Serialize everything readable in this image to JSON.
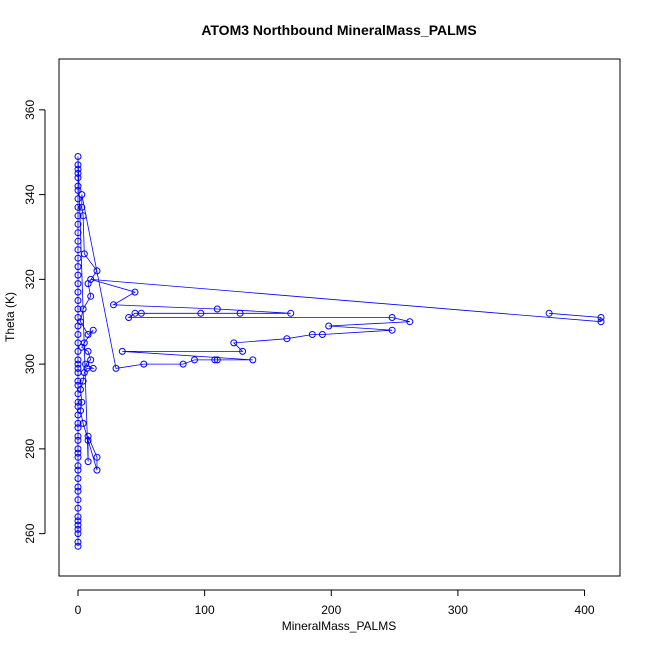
{
  "chart_data": {
    "type": "line",
    "title": "ATOM3 Northbound MineralMass_PALMS",
    "xlabel": "MineralMass_PALMS",
    "ylabel": "Theta (K)",
    "xlim": [
      -15,
      428
    ],
    "ylim": [
      250,
      372
    ],
    "xticks": [
      0,
      100,
      200,
      300,
      400
    ],
    "yticks": [
      260,
      280,
      300,
      320,
      340,
      360
    ],
    "grid": false,
    "legend": "none",
    "series": [
      {
        "color": "#0000ff",
        "marker": "open-circle",
        "points": [
          [
            0,
            257
          ],
          [
            0,
            258
          ],
          [
            0,
            260
          ],
          [
            0,
            261
          ],
          [
            0,
            262
          ],
          [
            0,
            263
          ],
          [
            0,
            264
          ],
          [
            0,
            266
          ],
          [
            0,
            268
          ],
          [
            0,
            270
          ],
          [
            0,
            271
          ],
          [
            0,
            273
          ],
          [
            0,
            275
          ],
          [
            0,
            276
          ],
          [
            0,
            278
          ],
          [
            0,
            279
          ],
          [
            0,
            280
          ],
          [
            0,
            282
          ],
          [
            0,
            283
          ],
          [
            0,
            285
          ],
          [
            0,
            286
          ],
          [
            0,
            288
          ],
          [
            0,
            290
          ],
          [
            0,
            291
          ],
          [
            0,
            293
          ],
          [
            0,
            295
          ],
          [
            0,
            296
          ],
          [
            0,
            298
          ],
          [
            0,
            299
          ],
          [
            0,
            300
          ],
          [
            0,
            301
          ],
          [
            0,
            303
          ],
          [
            0,
            305
          ],
          [
            0,
            307
          ],
          [
            0,
            309
          ],
          [
            0,
            311
          ],
          [
            0,
            313
          ],
          [
            0,
            315
          ],
          [
            0,
            317
          ],
          [
            0,
            319
          ],
          [
            0,
            321
          ],
          [
            0,
            323
          ],
          [
            0,
            325
          ],
          [
            0,
            327
          ],
          [
            0,
            329
          ],
          [
            0,
            331
          ],
          [
            0,
            333
          ],
          [
            0,
            335
          ],
          [
            0,
            337
          ],
          [
            0,
            339
          ],
          [
            0,
            341
          ],
          [
            0,
            342
          ],
          [
            0,
            344
          ],
          [
            0,
            345
          ],
          [
            0,
            346
          ],
          [
            0,
            347
          ],
          [
            0,
            349
          ],
          [
            8,
            277
          ],
          [
            8,
            282
          ],
          [
            8,
            283
          ],
          [
            15,
            278
          ],
          [
            15,
            275
          ],
          [
            4,
            286
          ],
          [
            2,
            289
          ],
          [
            3,
            291
          ],
          [
            2,
            294
          ],
          [
            4,
            296
          ],
          [
            5,
            298
          ],
          [
            7,
            299
          ],
          [
            12,
            299
          ],
          [
            6,
            300
          ],
          [
            10,
            301
          ],
          [
            8,
            303
          ],
          [
            3,
            304
          ],
          [
            5,
            305
          ],
          [
            12,
            308
          ],
          [
            8,
            307
          ],
          [
            2,
            310
          ],
          [
            4,
            313
          ],
          [
            10,
            316
          ],
          [
            8,
            319
          ],
          [
            15,
            322
          ],
          [
            5,
            326
          ],
          [
            4,
            335
          ],
          [
            3,
            337
          ],
          [
            3,
            340
          ],
          [
            30,
            299
          ],
          [
            52,
            300
          ],
          [
            83,
            300
          ],
          [
            92,
            301
          ],
          [
            108,
            301
          ],
          [
            110,
            301
          ],
          [
            138,
            301
          ],
          [
            35,
            303
          ],
          [
            130,
            303
          ],
          [
            123,
            305
          ],
          [
            165,
            306
          ],
          [
            185,
            307
          ],
          [
            193,
            307
          ],
          [
            248,
            308
          ],
          [
            198,
            309
          ],
          [
            262,
            310
          ],
          [
            248,
            311
          ],
          [
            40,
            311
          ],
          [
            45,
            312
          ],
          [
            50,
            312
          ],
          [
            97,
            312
          ],
          [
            128,
            312
          ],
          [
            168,
            312
          ],
          [
            110,
            313
          ],
          [
            28,
            314
          ],
          [
            45,
            317
          ],
          [
            10,
            320
          ],
          [
            413,
            310
          ],
          [
            413,
            311
          ],
          [
            372,
            312
          ]
        ]
      }
    ]
  }
}
